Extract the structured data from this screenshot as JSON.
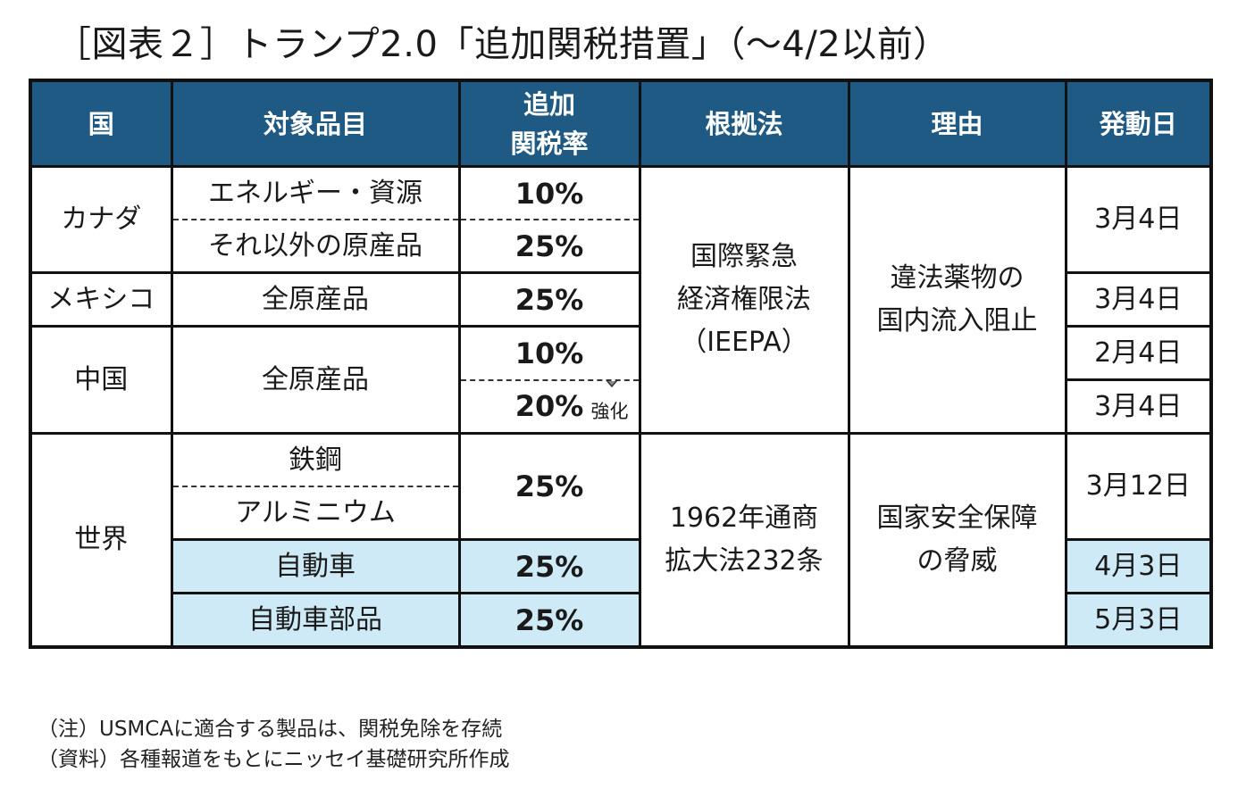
{
  "title": "［図表２］トランプ2.0「追加関税措置」（～4/2以前）",
  "headers": {
    "country": "国",
    "item": "対象品目",
    "rate_line1": "追加",
    "rate_line2": "関税率",
    "basis": "根拠法",
    "reason": "理由",
    "date": "発動日"
  },
  "rows": {
    "canada": {
      "country": "カナダ",
      "item1": "エネルギー・資源",
      "rate1": "10%",
      "item2": "それ以外の原産品",
      "rate2": "25%",
      "date": "3月4日"
    },
    "mexico": {
      "country": "メキシコ",
      "item": "全原産品",
      "rate": "25%",
      "date": "3月4日"
    },
    "china": {
      "country": "中国",
      "item": "全原産品",
      "rate1": "10%",
      "rate2": "20%",
      "strength_label": "強化",
      "date1": "2月4日",
      "date2": "3月4日"
    },
    "world": {
      "country": "世界",
      "item_steel": "鉄鋼",
      "item_aluminum": "アルミニウム",
      "rate_metals": "25%",
      "date_metals": "3月12日",
      "item_auto": "自動車",
      "rate_auto": "25%",
      "date_auto": "4月3日",
      "item_parts": "自動車部品",
      "rate_parts": "25%",
      "date_parts": "5月3日"
    }
  },
  "basis_ieepa": {
    "line1": "国際緊急",
    "line2": "経済権限法",
    "line3": "（IEEPA）"
  },
  "reason_ieepa": {
    "line1": "違法薬物の",
    "line2": "国内流入阻止"
  },
  "basis_232": {
    "line1": "1962年通商",
    "line2": "拡大法232条"
  },
  "reason_232": {
    "line1": "国家安全保障",
    "line2": "の脅威"
  },
  "notes": {
    "note": "（注）USMCAに適合する製品は、関税免除を存続",
    "source": "（資料）各種報道をもとにニッセイ基礎研究所作成"
  },
  "colors": {
    "header_bg": "#1e5a84",
    "highlight_bg": "#cfeaf7"
  },
  "icons": {
    "strength_arrow": "down-arrow-icon"
  }
}
